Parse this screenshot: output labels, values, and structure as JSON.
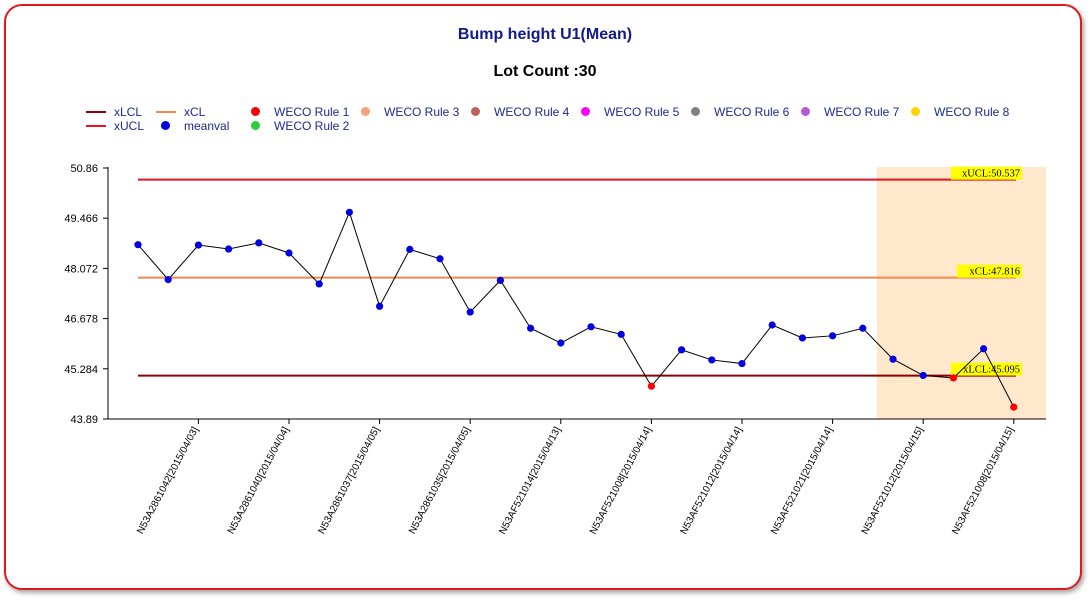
{
  "chart_data": {
    "type": "line",
    "title": "Bump height U1(Mean)",
    "subtitle": "Lot Count :30",
    "y_ticks": [
      "50.86",
      "49.466",
      "48.072",
      "46.678",
      "45.284",
      "43.89"
    ],
    "ylim": [
      43.89,
      50.86
    ],
    "x_tick_labels": [
      "N53A2861042[2015/04/03]",
      "N53A2861040[2015/04/04]",
      "N53A2861037[2015/04/05]",
      "N53A2861035[2015/04/05]",
      "N53AF521014[2015/04/13]",
      "N53AF521008[2015/04/14]",
      "N53AF521012[2015/04/14]",
      "N53AF521021[2015/04/14]",
      "N53AF521012[2015/04/15]",
      "N53AF521008[2015/04/15]"
    ],
    "x_tick_index": [
      2,
      5,
      8,
      11,
      14,
      17,
      20,
      23,
      26,
      29
    ],
    "control_limits": {
      "xUCL": 50.537,
      "xCL": 47.816,
      "xLCL": 45.095,
      "xUCL_label": "xUCL:50.537",
      "xCL_label": "xCL:47.816",
      "xLCL_label": "xLCL:45.095"
    },
    "highlight_range_index": [
      25,
      30
    ],
    "series": [
      {
        "name": "meanval",
        "values": [
          48.73,
          47.76,
          48.72,
          48.61,
          48.78,
          48.5,
          47.64,
          49.63,
          47.02,
          48.6,
          48.34,
          46.86,
          47.74,
          46.41,
          46.0,
          46.45,
          46.24,
          44.8,
          45.81,
          45.53,
          45.43,
          46.5,
          46.14,
          46.2,
          46.41,
          45.55,
          45.1,
          45.03,
          45.84,
          44.22
        ],
        "rule_violations_index": [
          17,
          27,
          29
        ]
      }
    ],
    "colors": {
      "xLCL": "#8b0000",
      "xUCL": "#e8121a",
      "xCL": "#f4874f",
      "meanval": "#0000e0",
      "rule1": "#ff0000",
      "rule2": "#2ecc40",
      "rule3": "#f4a07a",
      "rule4": "#c0605a",
      "rule5": "#ff00ff",
      "rule6": "#808080",
      "rule7": "#b45ad6",
      "rule8": "#ffd400",
      "highlight": "#ffe8cc",
      "axis": "#000000",
      "series_line": "#000000"
    },
    "legend": [
      {
        "label": "xLCL",
        "kind": "line",
        "color_key": "xLCL"
      },
      {
        "label": "xUCL",
        "kind": "line",
        "color_key": "xUCL"
      },
      {
        "label": "xCL",
        "kind": "line",
        "color_key": "xCL"
      },
      {
        "label": "meanval",
        "kind": "dot",
        "color_key": "meanval"
      },
      {
        "label": "WECO Rule 1",
        "kind": "dot",
        "color_key": "rule1"
      },
      {
        "label": "WECO Rule 2",
        "kind": "dot",
        "color_key": "rule2"
      },
      {
        "label": "WECO Rule 3",
        "kind": "dot",
        "color_key": "rule3"
      },
      {
        "label": "WECO Rule 4",
        "kind": "dot",
        "color_key": "rule4"
      },
      {
        "label": "WECO Rule 5",
        "kind": "dot",
        "color_key": "rule5"
      },
      {
        "label": "WECO Rule 6",
        "kind": "dot",
        "color_key": "rule6"
      },
      {
        "label": "WECO Rule 7",
        "kind": "dot",
        "color_key": "rule7"
      },
      {
        "label": "WECO Rule 8",
        "kind": "dot",
        "color_key": "rule8"
      }
    ]
  }
}
